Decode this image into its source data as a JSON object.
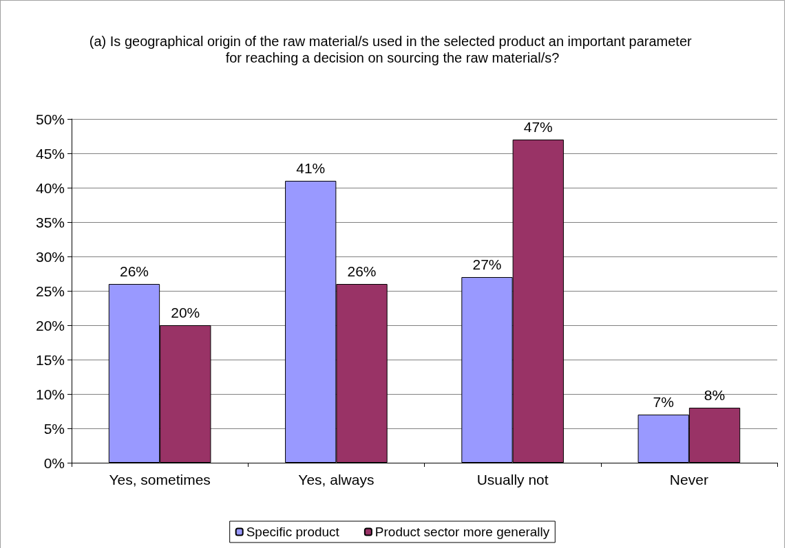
{
  "chart_data": {
    "type": "bar",
    "title": "(a) Is geographical origin of the raw material/s used in the selected product an important parameter for reaching a decision on sourcing the raw material/s?",
    "categories": [
      "Yes, sometimes",
      "Yes, always",
      "Usually not",
      "Never"
    ],
    "series": [
      {
        "name": "Specific product",
        "color": "#9999ff",
        "values": [
          26,
          41,
          27,
          7
        ],
        "value_labels": [
          "26%",
          "41%",
          "27%",
          "7%"
        ]
      },
      {
        "name": "Product sector more generally",
        "color": "#993366",
        "values": [
          20,
          26,
          47,
          8
        ],
        "value_labels": [
          "20%",
          "26%",
          "47%",
          "8%"
        ]
      }
    ],
    "ylim": [
      0,
      50
    ],
    "yticks": [
      {
        "value": 0,
        "label": "0%"
      },
      {
        "value": 5,
        "label": "5%"
      },
      {
        "value": 10,
        "label": "10%"
      },
      {
        "value": 15,
        "label": "15%"
      },
      {
        "value": 20,
        "label": "20%"
      },
      {
        "value": 25,
        "label": "25%"
      },
      {
        "value": 30,
        "label": "30%"
      },
      {
        "value": 35,
        "label": "35%"
      },
      {
        "value": 40,
        "label": "40%"
      },
      {
        "value": 45,
        "label": "45%"
      },
      {
        "value": 50,
        "label": "50%"
      }
    ],
    "grid": "y",
    "legend": "bottom"
  }
}
